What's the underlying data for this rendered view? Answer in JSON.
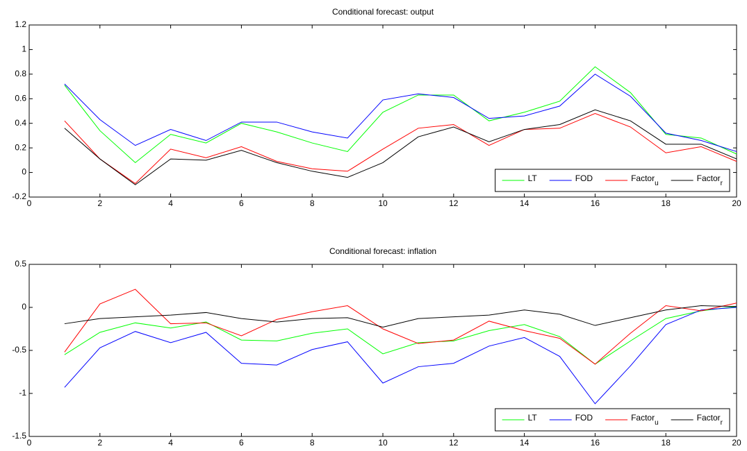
{
  "chart_data": [
    {
      "type": "line",
      "title": "Conditional forecast: output",
      "x": [
        1,
        2,
        3,
        4,
        5,
        6,
        7,
        8,
        9,
        10,
        11,
        12,
        13,
        14,
        15,
        16,
        17,
        18,
        19,
        20
      ],
      "series": [
        {
          "name": "LT",
          "color": "#00ff00",
          "values": [
            0.71,
            0.34,
            0.08,
            0.31,
            0.24,
            0.4,
            0.33,
            0.24,
            0.17,
            0.49,
            0.63,
            0.63,
            0.42,
            0.49,
            0.58,
            0.86,
            0.65,
            0.31,
            0.28,
            0.15
          ]
        },
        {
          "name": "FOD",
          "color": "#0000ff",
          "values": [
            0.72,
            0.43,
            0.22,
            0.35,
            0.26,
            0.41,
            0.41,
            0.33,
            0.28,
            0.59,
            0.64,
            0.61,
            0.44,
            0.46,
            0.54,
            0.8,
            0.62,
            0.32,
            0.26,
            0.17
          ]
        },
        {
          "name": "Factor",
          "subscript": "u",
          "color": "#ff0000",
          "values": [
            0.42,
            0.11,
            -0.09,
            0.19,
            0.12,
            0.21,
            0.09,
            0.03,
            0.01,
            0.19,
            0.36,
            0.39,
            0.22,
            0.35,
            0.36,
            0.48,
            0.37,
            0.16,
            0.21,
            0.09
          ]
        },
        {
          "name": "Factor",
          "subscript": "r",
          "color": "#000000",
          "values": [
            0.36,
            0.11,
            -0.1,
            0.11,
            0.1,
            0.18,
            0.08,
            0.01,
            -0.04,
            0.08,
            0.29,
            0.37,
            0.25,
            0.35,
            0.39,
            0.51,
            0.42,
            0.23,
            0.23,
            0.11
          ]
        }
      ],
      "xlim": [
        0,
        20
      ],
      "xticks": [
        0,
        2,
        4,
        6,
        8,
        10,
        12,
        14,
        16,
        18,
        20
      ],
      "ylim": [
        -0.2,
        1.2
      ],
      "yticks": [
        -0.2,
        0,
        0.2,
        0.4,
        0.6,
        0.8,
        1,
        1.2
      ],
      "legend": "lower right"
    },
    {
      "type": "line",
      "title": "Conditional forecast: inflation",
      "x": [
        1,
        2,
        3,
        4,
        5,
        6,
        7,
        8,
        9,
        10,
        11,
        12,
        13,
        14,
        15,
        16,
        17,
        18,
        19,
        20
      ],
      "series": [
        {
          "name": "LT",
          "color": "#00ff00",
          "values": [
            -0.55,
            -0.29,
            -0.18,
            -0.24,
            -0.17,
            -0.38,
            -0.39,
            -0.3,
            -0.25,
            -0.54,
            -0.41,
            -0.39,
            -0.27,
            -0.2,
            -0.34,
            -0.66,
            -0.39,
            -0.13,
            -0.04,
            0.01
          ]
        },
        {
          "name": "FOD",
          "color": "#0000ff",
          "values": [
            -0.93,
            -0.47,
            -0.28,
            -0.41,
            -0.29,
            -0.65,
            -0.67,
            -0.49,
            -0.4,
            -0.88,
            -0.69,
            -0.65,
            -0.45,
            -0.35,
            -0.57,
            -1.12,
            -0.68,
            -0.2,
            -0.03,
            0.0
          ]
        },
        {
          "name": "Factor",
          "subscript": "u",
          "color": "#ff0000",
          "values": [
            -0.52,
            0.04,
            0.21,
            -0.19,
            -0.18,
            -0.33,
            -0.14,
            -0.05,
            0.02,
            -0.25,
            -0.42,
            -0.38,
            -0.16,
            -0.27,
            -0.36,
            -0.66,
            -0.3,
            0.02,
            -0.04,
            0.05
          ]
        },
        {
          "name": "Factor",
          "subscript": "r",
          "color": "#000000",
          "values": [
            -0.19,
            -0.13,
            -0.11,
            -0.09,
            -0.06,
            -0.13,
            -0.17,
            -0.13,
            -0.12,
            -0.23,
            -0.13,
            -0.11,
            -0.09,
            -0.03,
            -0.08,
            -0.21,
            -0.12,
            -0.03,
            0.02,
            0.01
          ]
        }
      ],
      "xlim": [
        0,
        20
      ],
      "xticks": [
        0,
        2,
        4,
        6,
        8,
        10,
        12,
        14,
        16,
        18,
        20
      ],
      "ylim": [
        -1.5,
        0.5
      ],
      "yticks": [
        -1.5,
        -1,
        -0.5,
        0,
        0.5
      ],
      "legend": "lower right"
    }
  ]
}
